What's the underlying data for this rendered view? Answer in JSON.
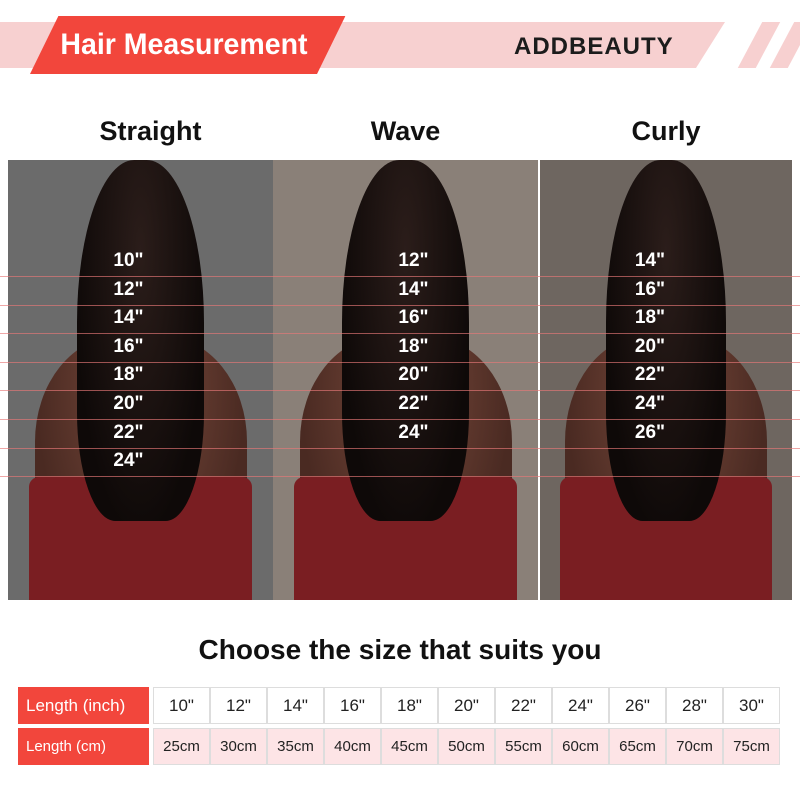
{
  "header": {
    "title": "Hair Measurement",
    "brand": "ADDBEAUTY"
  },
  "colors": {
    "accent": "#f2463c",
    "band": "#f7d0d0",
    "cm_row": "#fde4e6"
  },
  "styles": [
    {
      "name": "Straight",
      "lengths": [
        "10\"",
        "12\"",
        "14\"",
        "16\"",
        "18\"",
        "20\"",
        "22\"",
        "24\""
      ]
    },
    {
      "name": "Wave",
      "lengths": [
        "12\"",
        "14\"",
        "16\"",
        "18\"",
        "20\"",
        "22\"",
        "24\""
      ]
    },
    {
      "name": "Curly",
      "lengths": [
        "14\"",
        "16\"",
        "18\"",
        "20\"",
        "22\"",
        "24\"",
        "26\""
      ]
    }
  ],
  "subtitle": "Choose the size that suits you",
  "table": {
    "inch_label": "Length (inch)",
    "cm_label": "Length (cm)",
    "inches": [
      "10\"",
      "12\"",
      "14\"",
      "16\"",
      "18\"",
      "20\"",
      "22\"",
      "24\"",
      "26\"",
      "28\"",
      "30\""
    ],
    "cm": [
      "25cm",
      "30cm",
      "35cm",
      "40cm",
      "45cm",
      "50cm",
      "55cm",
      "60cm",
      "65cm",
      "70cm",
      "75cm"
    ]
  }
}
